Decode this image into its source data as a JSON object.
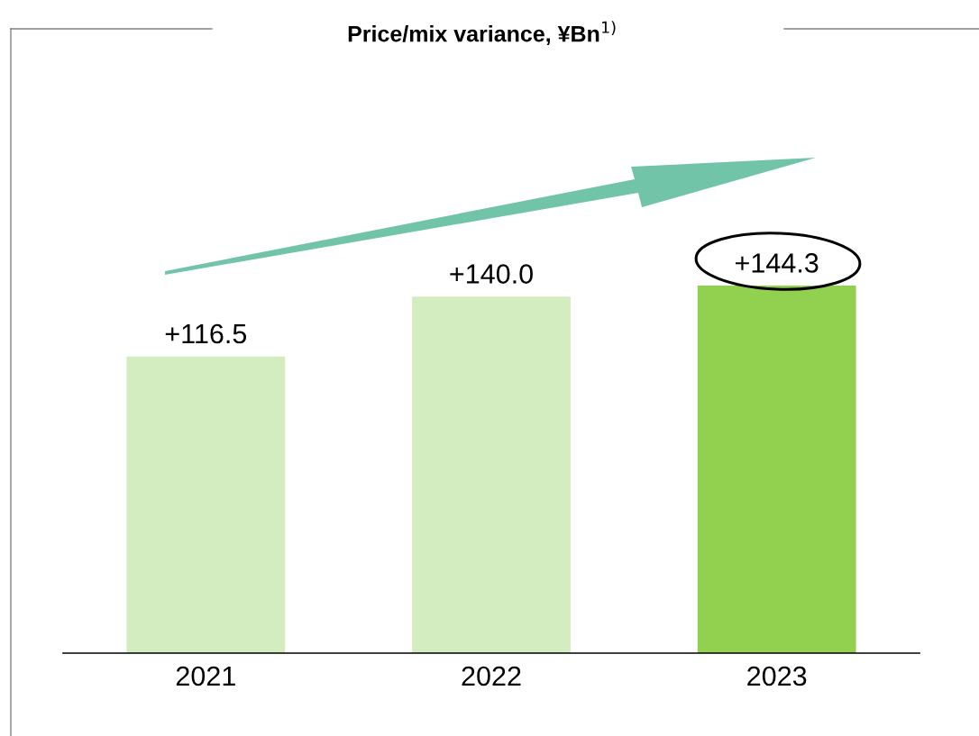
{
  "chart_data": {
    "type": "bar",
    "title": "Price/mix variance, ¥Bn$^{1)}$",
    "categories": [
      "2021",
      "2022",
      "2023"
    ],
    "values": [
      116.5,
      140.0,
      144.3
    ],
    "colors": [
      "#d3ecc0",
      "#d3ecc0",
      "#92d050"
    ],
    "value_labels": [
      "+116.5",
      "+140.0",
      "+144.3"
    ],
    "tick_labels": "x",
    "grid": false,
    "legend": false
  }
}
